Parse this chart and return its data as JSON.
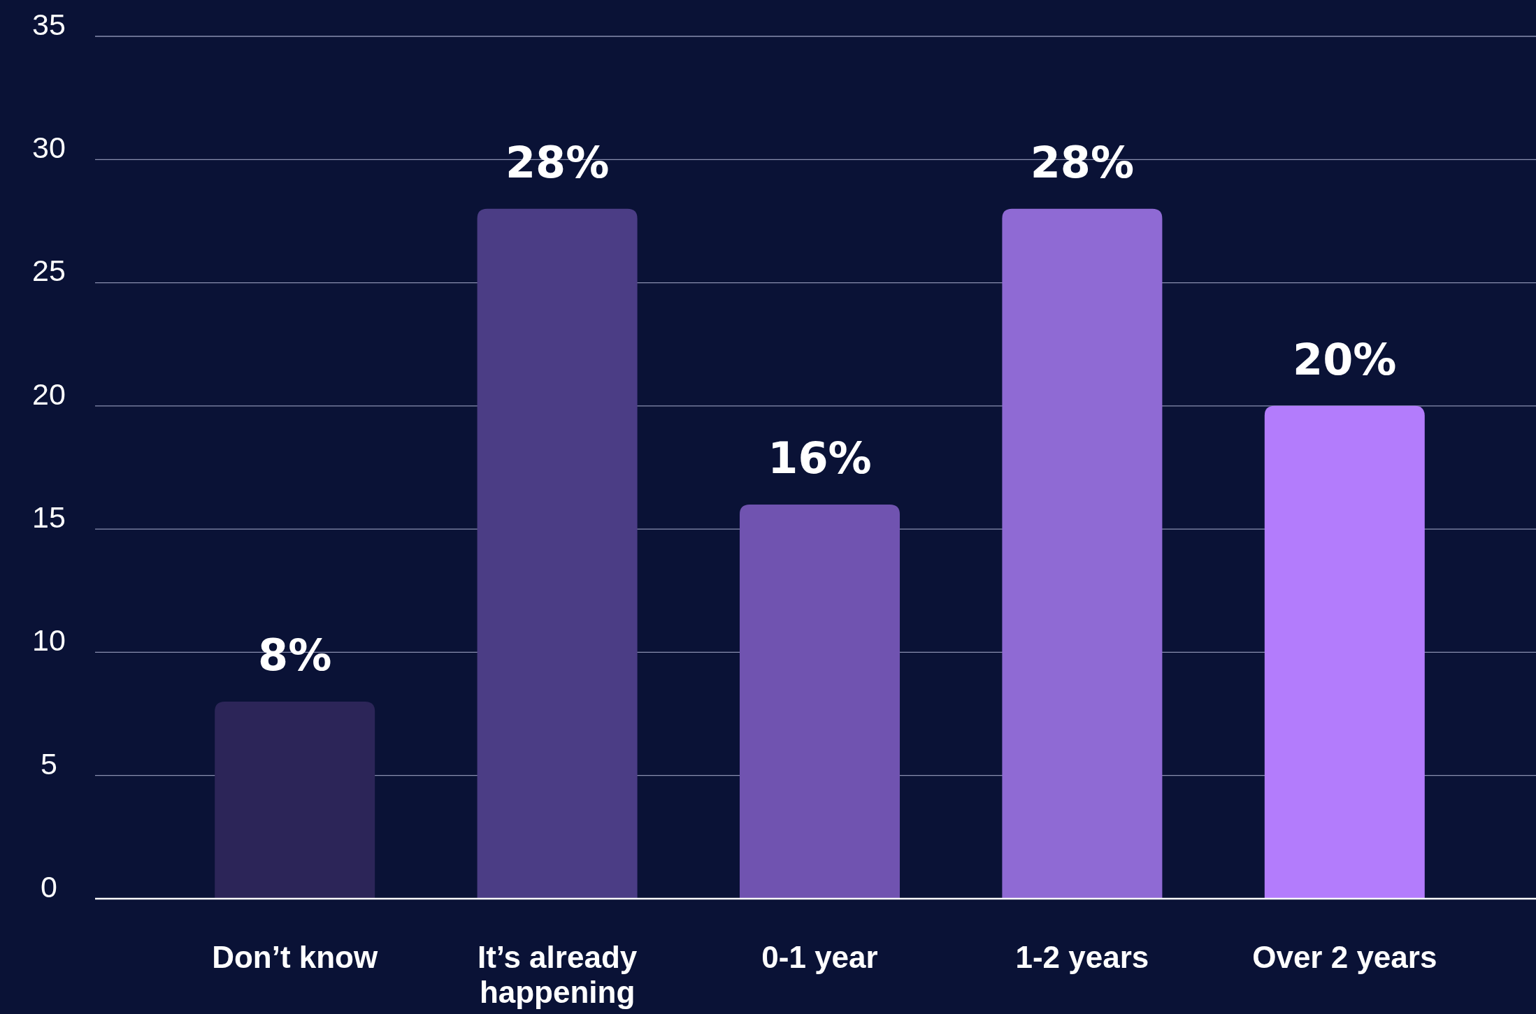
{
  "chart_data": {
    "type": "bar",
    "categories": [
      "Don’t know",
      "It’s already happening",
      "0-1 year",
      "1-2 years",
      "Over 2 years"
    ],
    "values": [
      8,
      28,
      16,
      28,
      20
    ],
    "colors": [
      "#2c2558",
      "#4b3d85",
      "#7053b0",
      "#8f6ad4",
      "#b37cfc"
    ],
    "value_labels": [
      "8%",
      "28%",
      "16%",
      "28%",
      "20%"
    ],
    "ylim": [
      0,
      35
    ],
    "yticks": [
      0,
      5,
      10,
      15,
      20,
      25,
      30,
      35
    ],
    "grid": "y"
  }
}
